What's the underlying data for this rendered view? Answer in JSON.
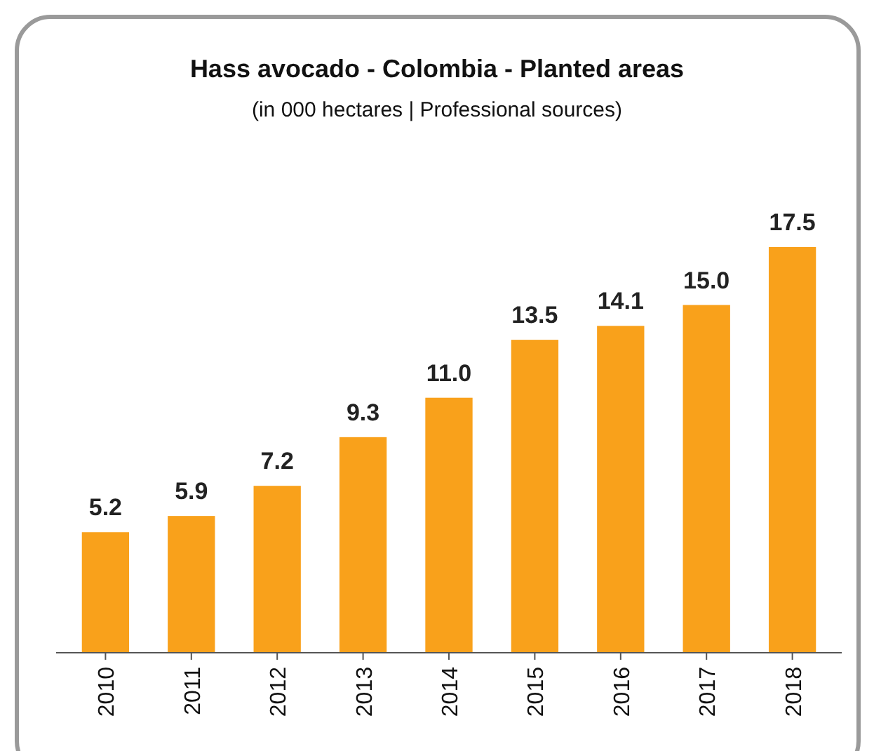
{
  "chart_data": {
    "type": "bar",
    "title": "Hass avocado - Colombia - Planted areas",
    "subtitle": "(in 000 hectares | Professional sources)",
    "categories": [
      "2010",
      "2011",
      "2012",
      "2013",
      "2014",
      "2015",
      "2016",
      "2017",
      "2018"
    ],
    "values": [
      5.2,
      5.9,
      7.2,
      9.3,
      11.0,
      13.5,
      14.1,
      15.0,
      17.5
    ],
    "value_labels": [
      "5.2",
      "5.9",
      "7.2",
      "9.3",
      "11.0",
      "13.5",
      "14.1",
      "15.0",
      "17.5"
    ],
    "color": "#f9a11b"
  }
}
